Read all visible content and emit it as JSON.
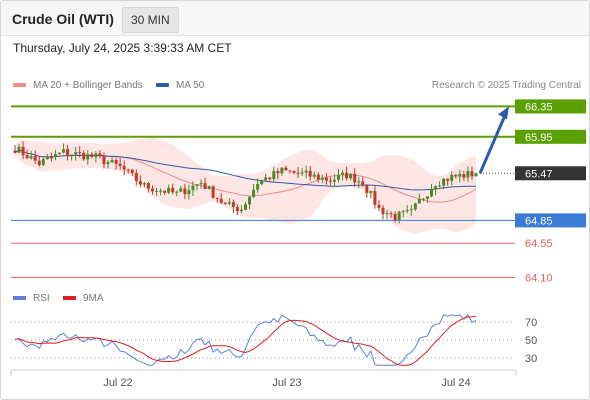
{
  "header": {
    "instrument": "Crude Oil (WTI)",
    "timeframe": "30 MIN",
    "timestamp": "Thursday, July 24, 2025 3:39:33 AM CET"
  },
  "legend": {
    "ma20_label": "MA 20 + Bollinger Bands",
    "ma20_color": "#f28b8b",
    "ma50_label": "MA 50",
    "ma50_color": "#2f5aa8",
    "credit": "Research © 2025 Trading Central"
  },
  "rsi_legend": {
    "rsi_label": "RSI",
    "rsi_color": "#5b82d6",
    "ma_label": "9MA",
    "ma_color": "#e02020"
  },
  "chart_data": {
    "type": "candlestick",
    "y_range": [
      64.0,
      66.5
    ],
    "x_ticks": [
      "Jul 22",
      "Jul 23",
      "Jul 24"
    ],
    "levels": [
      {
        "value": 66.35,
        "label": "66.35",
        "kind": "resistance",
        "color": "#5aa000"
      },
      {
        "value": 65.95,
        "label": "65.95",
        "kind": "resistance",
        "color": "#5aa000"
      },
      {
        "value": 65.47,
        "label": "65.47",
        "kind": "last-price",
        "color": "#333333"
      },
      {
        "value": 64.85,
        "label": "64.85",
        "kind": "pivot",
        "color": "#3a7bd5"
      },
      {
        "value": 64.55,
        "label": "64.55",
        "kind": "support",
        "color": "#e06060"
      },
      {
        "value": 64.1,
        "label": "64.10",
        "kind": "support",
        "color": "#e06060"
      }
    ],
    "candle_colors": {
      "up": "#4a8a2a",
      "down": "#c0392b"
    },
    "rsi": {
      "levels": [
        70,
        50,
        30
      ],
      "range": [
        20,
        80
      ]
    }
  }
}
